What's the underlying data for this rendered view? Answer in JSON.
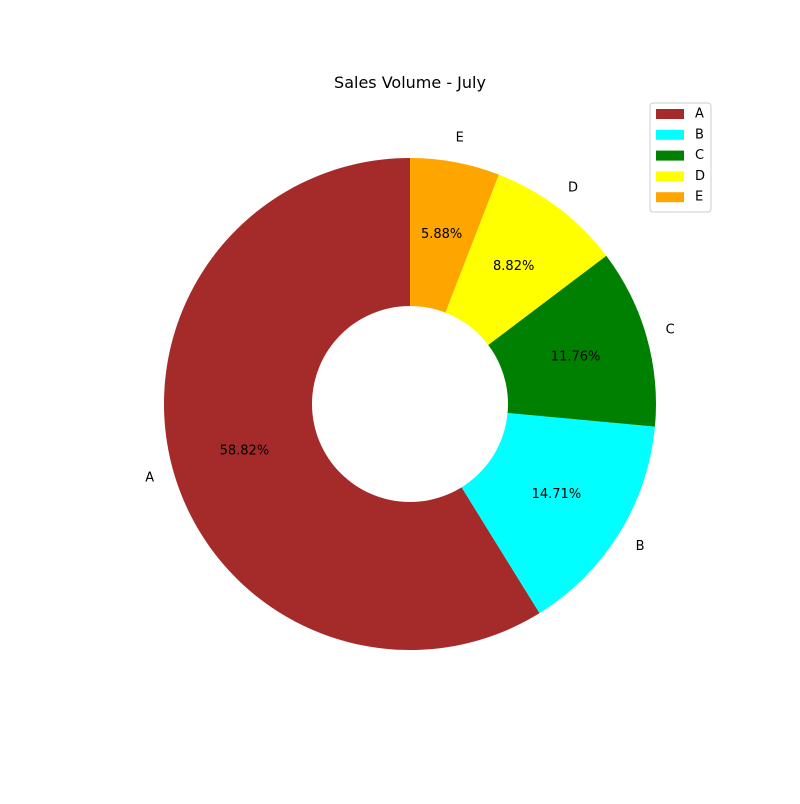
{
  "chart_data": {
    "type": "pie",
    "donut": true,
    "title": "Sales Volume - July",
    "categories": [
      "A",
      "B",
      "C",
      "D",
      "E"
    ],
    "values": [
      58.82,
      14.71,
      11.76,
      8.82,
      5.88
    ],
    "percent_labels": [
      "58.82%",
      "14.71%",
      "11.76%",
      "8.82%",
      "5.88%"
    ],
    "colors": [
      "#a52a2a",
      "#00ffff",
      "#008000",
      "#ffff00",
      "#ffa500"
    ],
    "legend": {
      "position": "top-right",
      "entries": [
        "A",
        "B",
        "C",
        "D",
        "E"
      ]
    }
  }
}
